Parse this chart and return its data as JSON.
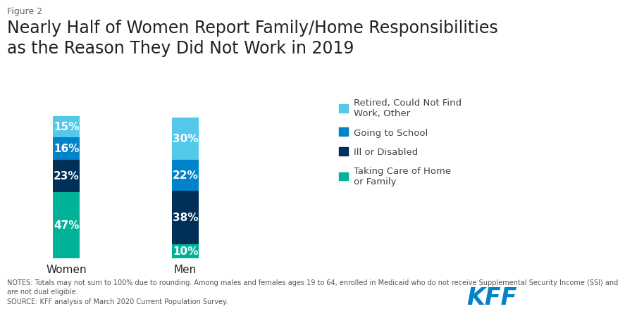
{
  "title_label": "Figure 2",
  "title": "Nearly Half of Women Report Family/Home Responsibilities\nas the Reason They Did Not Work in 2019",
  "categories": [
    "Women",
    "Men"
  ],
  "segments": [
    {
      "label": "Taking Care of Home\nor Family",
      "color": "#00b398",
      "values": [
        47,
        10
      ]
    },
    {
      "label": "Ill or Disabled",
      "color": "#003057",
      "values": [
        23,
        38
      ]
    },
    {
      "label": "Going to School",
      "color": "#0083ca",
      "values": [
        16,
        22
      ]
    },
    {
      "label": "Retired, Could Not Find\nWork, Other",
      "color": "#53c8e8",
      "values": [
        15,
        30
      ]
    }
  ],
  "bar_width": 0.45,
  "bar_positions": [
    1,
    3
  ],
  "xlim": [
    0,
    5.5
  ],
  "ylim": [
    0,
    108
  ],
  "text_color_bar": "#ffffff",
  "bar_fontsize": 11,
  "notes_line1": "NOTES: Totals may not sum to 100% due to rounding. Among males and females ages 19 to 64, enrolled in Medicaid who do not receive Supplemental Security Income (SSI) and",
  "notes_line2": "are not dual eligible.",
  "notes_line3": "SOURCE: KFF analysis of March 2020 Current Population Survey.",
  "kff_color": "#0083ca",
  "background_color": "#ffffff",
  "figure_label_color": "#666666",
  "title_color": "#222222",
  "legend_text_color": "#444444",
  "xlabel_fontsize": 11,
  "title_fontsize": 17,
  "figure_label_fontsize": 9,
  "notes_fontsize": 7,
  "kff_fontsize": 24,
  "legend_fontsize": 9.5
}
